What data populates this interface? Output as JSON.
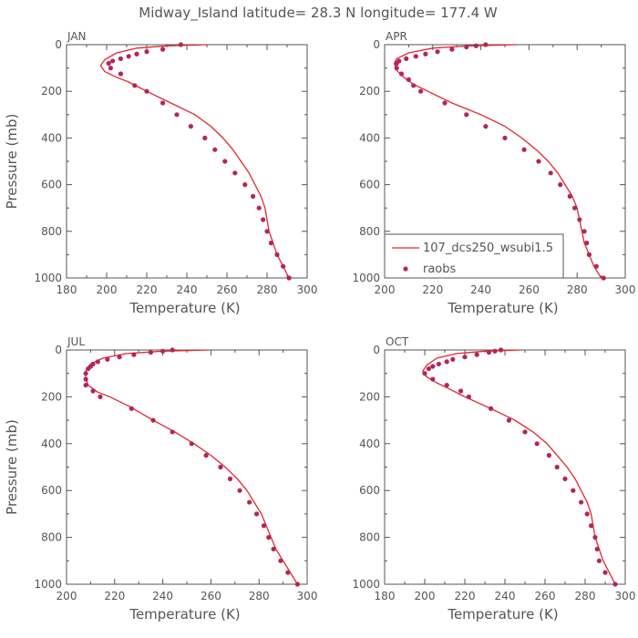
{
  "title": "Midway_Island   latitude= 28.3 N longitude= 177.4 W",
  "colors": {
    "model": "#e0282e",
    "obs": "#b5245a",
    "axis": "#555555"
  },
  "legend": {
    "model_label": "107_dcs250_wsubi1.5",
    "obs_label": "raobs",
    "placement": "bottom-right of APR panel"
  },
  "chart_data": [
    {
      "type": "line",
      "month": "JAN",
      "xlabel": "Temperature (K)",
      "ylabel": "Pressure (mb)",
      "xlim": [
        180,
        300
      ],
      "ylim": [
        1000,
        0
      ],
      "x_ticks": [
        180,
        200,
        220,
        240,
        260,
        280,
        300
      ],
      "y_ticks": [
        0,
        200,
        400,
        600,
        800,
        1000
      ],
      "model": {
        "name": "107_dcs250_wsubi1.5",
        "points": [
          [
            250,
            0
          ],
          [
            230,
            5
          ],
          [
            215,
            15
          ],
          [
            205,
            35
          ],
          [
            199,
            65
          ],
          [
            197,
            90
          ],
          [
            199,
            115
          ],
          [
            205,
            140
          ],
          [
            211,
            160
          ],
          [
            220,
            200
          ],
          [
            232,
            250
          ],
          [
            244,
            300
          ],
          [
            252,
            350
          ],
          [
            258,
            400
          ],
          [
            263,
            450
          ],
          [
            267,
            500
          ],
          [
            271,
            550
          ],
          [
            274,
            600
          ],
          [
            277,
            650
          ],
          [
            279,
            700
          ],
          [
            280,
            750
          ],
          [
            281,
            800
          ],
          [
            283,
            850
          ],
          [
            285,
            900
          ],
          [
            288,
            950
          ],
          [
            291,
            1000
          ]
        ]
      },
      "obs": {
        "name": "raobs",
        "points": [
          [
            237,
            0
          ],
          [
            228,
            20
          ],
          [
            220,
            30
          ],
          [
            215,
            40
          ],
          [
            211,
            50
          ],
          [
            207,
            60
          ],
          [
            203,
            70
          ],
          [
            201,
            80
          ],
          [
            202,
            100
          ],
          [
            207,
            125
          ],
          [
            214,
            175
          ],
          [
            220,
            200
          ],
          [
            228,
            250
          ],
          [
            235,
            300
          ],
          [
            242,
            350
          ],
          [
            249,
            400
          ],
          [
            254,
            450
          ],
          [
            259,
            500
          ],
          [
            264,
            550
          ],
          [
            269,
            600
          ],
          [
            273,
            650
          ],
          [
            276,
            700
          ],
          [
            278,
            750
          ],
          [
            280,
            800
          ],
          [
            282,
            850
          ],
          [
            285,
            900
          ],
          [
            288,
            950
          ],
          [
            291,
            1000
          ]
        ]
      }
    },
    {
      "type": "line",
      "month": "APR",
      "xlabel": "Temperature (K)",
      "ylabel": "",
      "xlim": [
        200,
        300
      ],
      "ylim": [
        1000,
        0
      ],
      "x_ticks": [
        200,
        220,
        240,
        260,
        280,
        300
      ],
      "y_ticks": [
        0,
        200,
        400,
        600,
        800,
        1000
      ],
      "model": {
        "name": "107_dcs250_wsubi1.5",
        "points": [
          [
            255,
            0
          ],
          [
            235,
            5
          ],
          [
            220,
            15
          ],
          [
            210,
            35
          ],
          [
            205,
            60
          ],
          [
            204,
            80
          ],
          [
            205,
            110
          ],
          [
            208,
            140
          ],
          [
            212,
            170
          ],
          [
            218,
            200
          ],
          [
            228,
            250
          ],
          [
            240,
            300
          ],
          [
            250,
            350
          ],
          [
            257,
            400
          ],
          [
            263,
            450
          ],
          [
            268,
            500
          ],
          [
            272,
            550
          ],
          [
            275,
            600
          ],
          [
            278,
            650
          ],
          [
            280,
            700
          ],
          [
            281,
            750
          ],
          [
            282,
            800
          ],
          [
            283,
            850
          ],
          [
            285,
            900
          ],
          [
            287,
            950
          ],
          [
            290,
            1000
          ]
        ]
      },
      "obs": {
        "name": "raobs",
        "points": [
          [
            242,
            0
          ],
          [
            238,
            5
          ],
          [
            234,
            10
          ],
          [
            228,
            20
          ],
          [
            222,
            30
          ],
          [
            217,
            40
          ],
          [
            213,
            50
          ],
          [
            209,
            60
          ],
          [
            206,
            70
          ],
          [
            205,
            80
          ],
          [
            205,
            100
          ],
          [
            207,
            125
          ],
          [
            210,
            150
          ],
          [
            212,
            175
          ],
          [
            215,
            200
          ],
          [
            225,
            250
          ],
          [
            234,
            300
          ],
          [
            242,
            350
          ],
          [
            250,
            400
          ],
          [
            258,
            450
          ],
          [
            264,
            500
          ],
          [
            269,
            550
          ],
          [
            273,
            600
          ],
          [
            277,
            650
          ],
          [
            279,
            700
          ],
          [
            281,
            750
          ],
          [
            283,
            800
          ],
          [
            284,
            850
          ],
          [
            285,
            900
          ],
          [
            288,
            950
          ],
          [
            291,
            1000
          ]
        ]
      }
    },
    {
      "type": "line",
      "month": "JUL",
      "xlabel": "Temperature (K)",
      "ylabel": "Pressure (mb)",
      "xlim": [
        200,
        300
      ],
      "ylim": [
        1000,
        0
      ],
      "x_ticks": [
        200,
        220,
        240,
        260,
        280,
        300
      ],
      "y_ticks": [
        0,
        200,
        400,
        600,
        800,
        1000
      ],
      "model": {
        "name": "107_dcs250_wsubi1.5",
        "points": [
          [
            259,
            0
          ],
          [
            240,
            5
          ],
          [
            225,
            15
          ],
          [
            215,
            35
          ],
          [
            210,
            60
          ],
          [
            208,
            90
          ],
          [
            208,
            120
          ],
          [
            209,
            150
          ],
          [
            213,
            180
          ],
          [
            218,
            200
          ],
          [
            226,
            240
          ],
          [
            236,
            300
          ],
          [
            245,
            350
          ],
          [
            253,
            400
          ],
          [
            260,
            450
          ],
          [
            266,
            500
          ],
          [
            271,
            550
          ],
          [
            275,
            600
          ],
          [
            278,
            650
          ],
          [
            281,
            700
          ],
          [
            283,
            750
          ],
          [
            285,
            800
          ],
          [
            287,
            850
          ],
          [
            290,
            900
          ],
          [
            293,
            950
          ],
          [
            296,
            1000
          ]
        ]
      },
      "obs": {
        "name": "raobs",
        "points": [
          [
            244,
            0
          ],
          [
            240,
            5
          ],
          [
            235,
            10
          ],
          [
            228,
            20
          ],
          [
            222,
            30
          ],
          [
            217,
            40
          ],
          [
            213,
            50
          ],
          [
            211,
            60
          ],
          [
            210,
            70
          ],
          [
            209,
            80
          ],
          [
            208,
            100
          ],
          [
            208,
            125
          ],
          [
            208,
            150
          ],
          [
            211,
            175
          ],
          [
            214,
            200
          ],
          [
            227,
            250
          ],
          [
            236,
            300
          ],
          [
            244,
            350
          ],
          [
            252,
            400
          ],
          [
            258,
            450
          ],
          [
            264,
            500
          ],
          [
            268,
            550
          ],
          [
            272,
            600
          ],
          [
            276,
            650
          ],
          [
            279,
            700
          ],
          [
            282,
            750
          ],
          [
            284,
            800
          ],
          [
            286,
            850
          ],
          [
            289,
            900
          ],
          [
            292,
            950
          ],
          [
            296,
            1000
          ]
        ]
      }
    },
    {
      "type": "line",
      "month": "OCT",
      "xlabel": "Temperature (K)",
      "ylabel": "",
      "xlim": [
        180,
        300
      ],
      "ylim": [
        1000,
        0
      ],
      "x_ticks": [
        180,
        200,
        220,
        240,
        260,
        280,
        300
      ],
      "y_ticks": [
        0,
        200,
        400,
        600,
        800,
        1000
      ],
      "model": {
        "name": "107_dcs250_wsubi1.5",
        "points": [
          [
            248,
            0
          ],
          [
            230,
            5
          ],
          [
            216,
            15
          ],
          [
            206,
            35
          ],
          [
            201,
            65
          ],
          [
            199,
            90
          ],
          [
            201,
            115
          ],
          [
            206,
            140
          ],
          [
            212,
            165
          ],
          [
            220,
            200
          ],
          [
            233,
            250
          ],
          [
            245,
            300
          ],
          [
            254,
            350
          ],
          [
            261,
            400
          ],
          [
            266,
            450
          ],
          [
            271,
            500
          ],
          [
            275,
            550
          ],
          [
            278,
            600
          ],
          [
            281,
            650
          ],
          [
            283,
            700
          ],
          [
            284,
            750
          ],
          [
            285,
            800
          ],
          [
            287,
            850
          ],
          [
            289,
            900
          ],
          [
            292,
            950
          ],
          [
            295,
            1000
          ]
        ]
      },
      "obs": {
        "name": "raobs",
        "points": [
          [
            238,
            0
          ],
          [
            235,
            5
          ],
          [
            232,
            10
          ],
          [
            226,
            20
          ],
          [
            220,
            30
          ],
          [
            214,
            40
          ],
          [
            211,
            50
          ],
          [
            207,
            60
          ],
          [
            204,
            70
          ],
          [
            202,
            80
          ],
          [
            200,
            100
          ],
          [
            204,
            125
          ],
          [
            211,
            150
          ],
          [
            218,
            175
          ],
          [
            222,
            200
          ],
          [
            233,
            250
          ],
          [
            242,
            300
          ],
          [
            250,
            350
          ],
          [
            256,
            400
          ],
          [
            262,
            450
          ],
          [
            266,
            500
          ],
          [
            270,
            550
          ],
          [
            274,
            600
          ],
          [
            278,
            650
          ],
          [
            281,
            700
          ],
          [
            283,
            750
          ],
          [
            285,
            800
          ],
          [
            286,
            850
          ],
          [
            287,
            900
          ],
          [
            290,
            950
          ],
          [
            295,
            1000
          ]
        ]
      }
    }
  ]
}
